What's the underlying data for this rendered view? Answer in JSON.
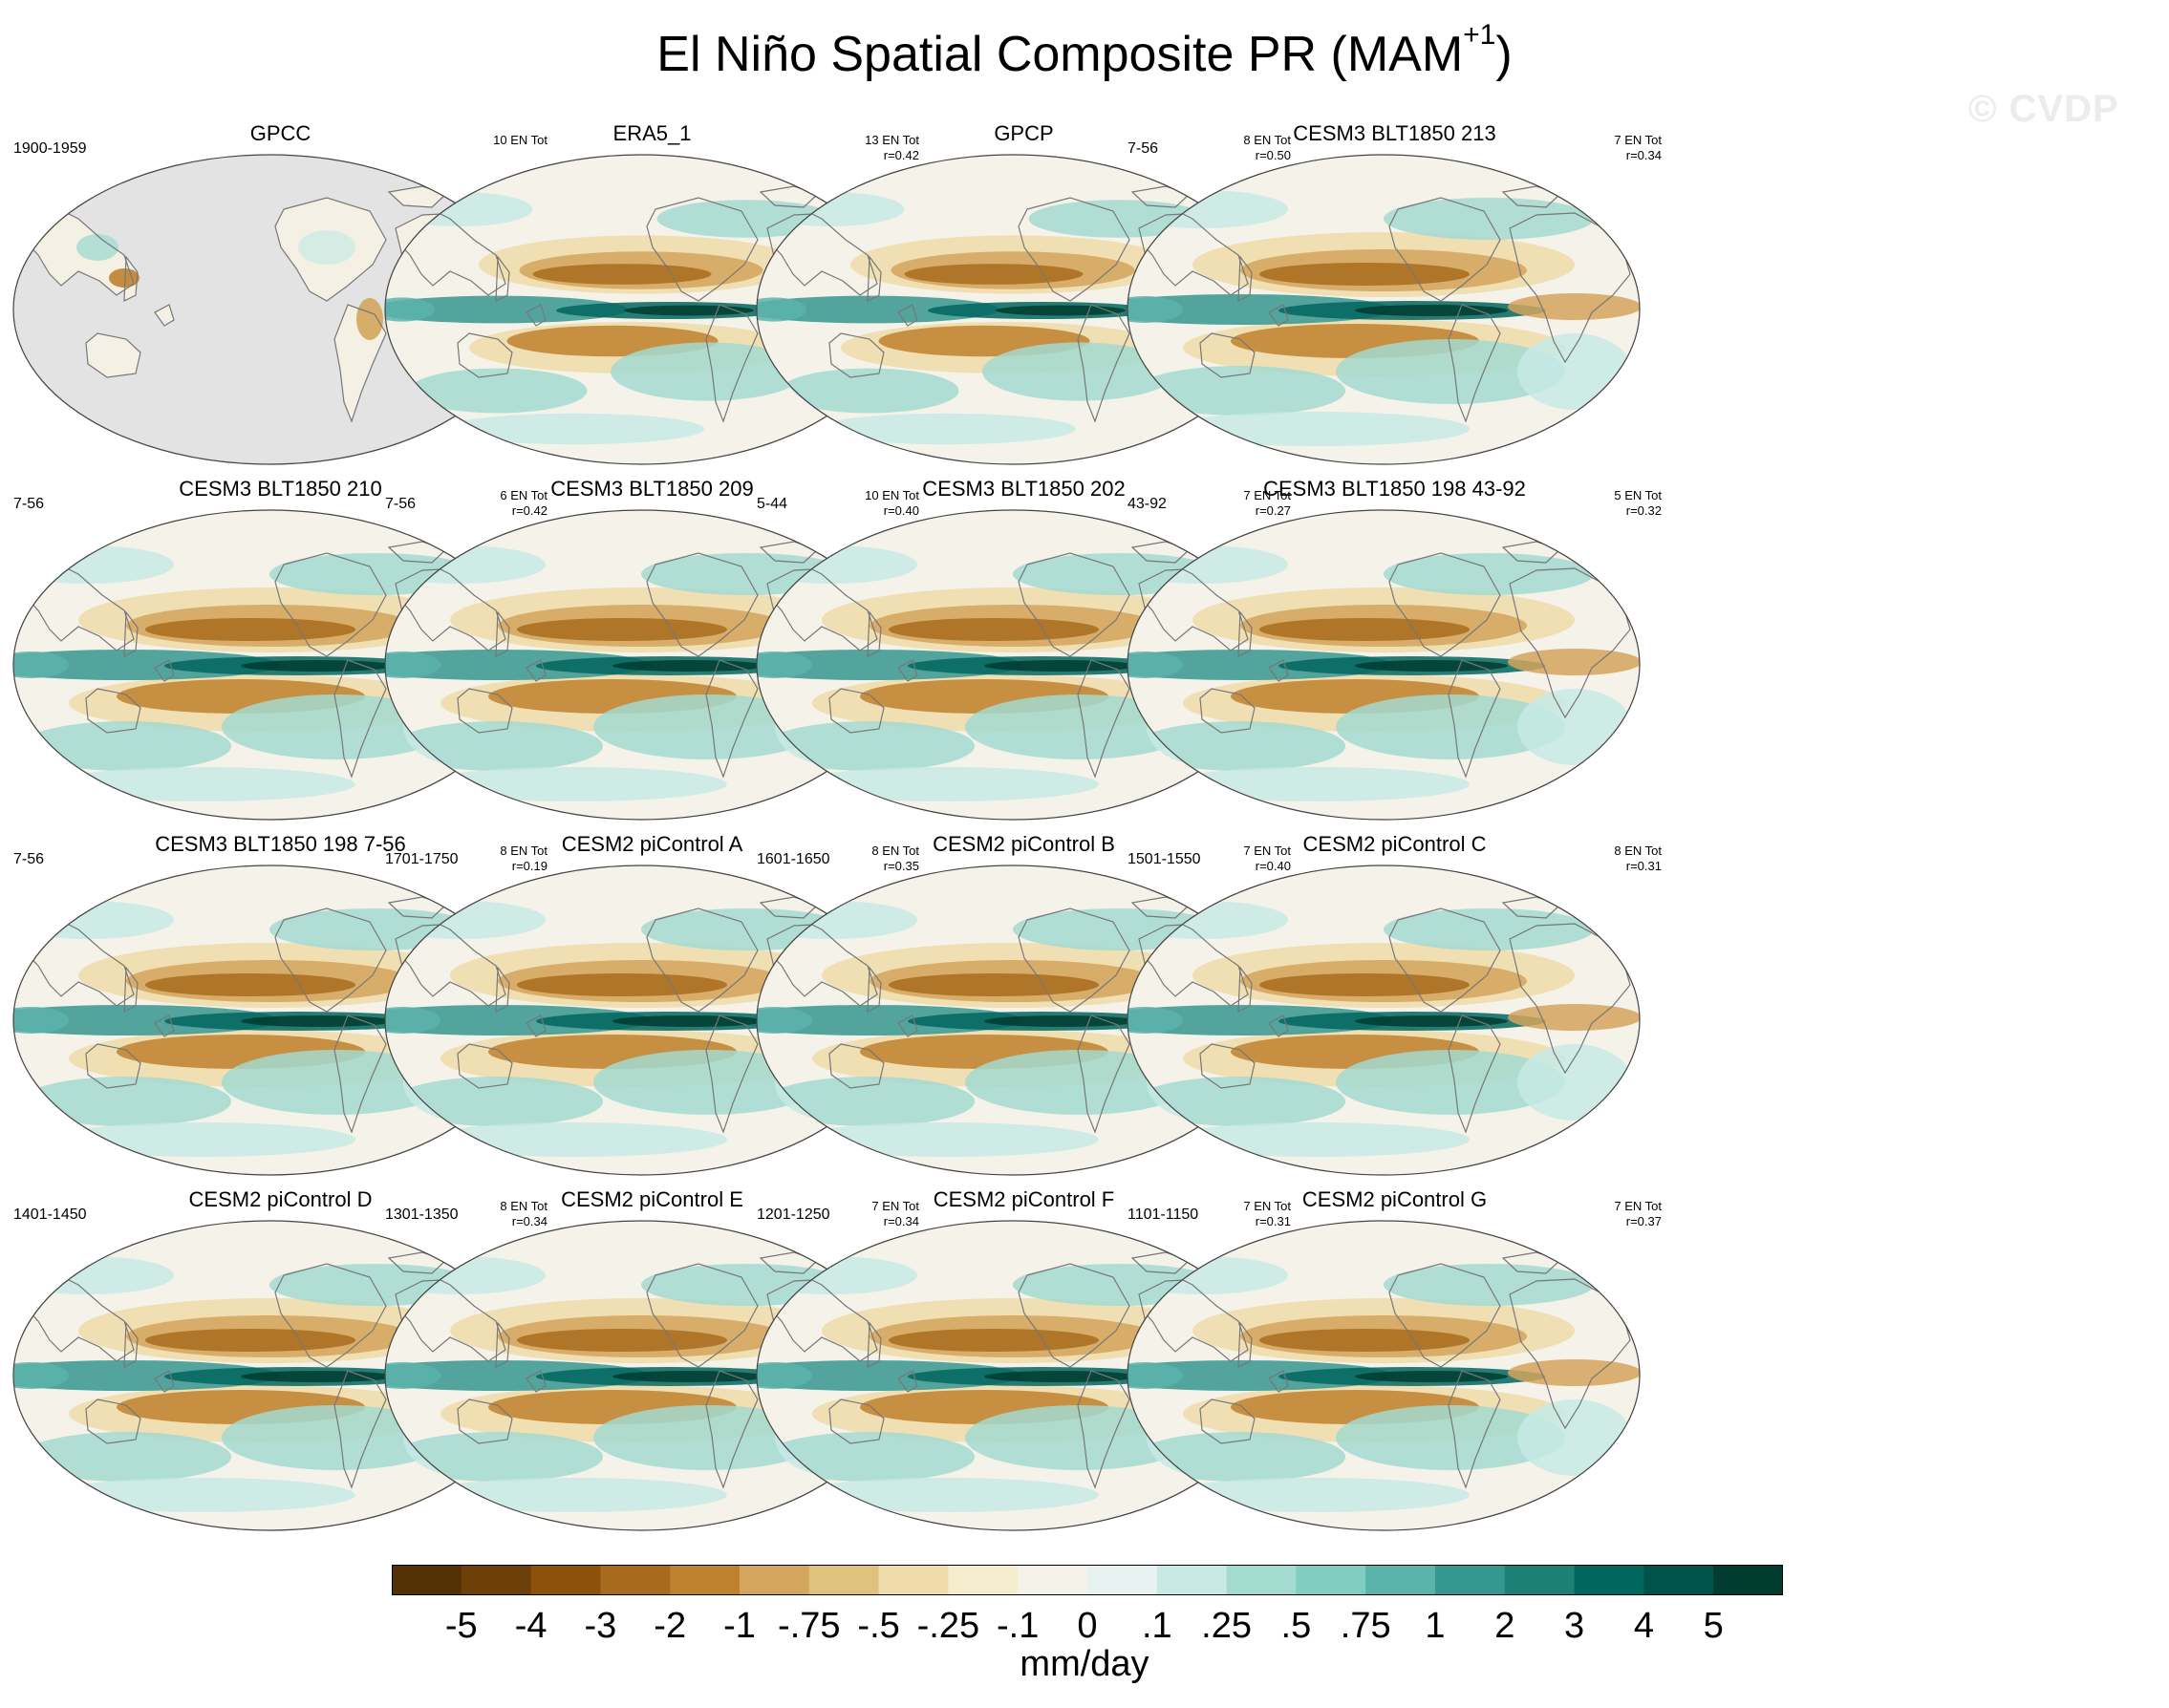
{
  "figure": {
    "title": "El Niño Spatial Composite PR (MAM",
    "title_superscript": "+1",
    "title_close": ")",
    "watermark": "© CVDP",
    "units": "mm/day"
  },
  "colors": {
    "land_mask": "#e3e3e3",
    "coast": "#777777",
    "scale": [
      "#543005",
      "#6e4009",
      "#8c510a",
      "#a86b1e",
      "#bf812d",
      "#d4a55c",
      "#dfc27d",
      "#f0dcaa",
      "#f6ecce",
      "#f5f2ea",
      "#e8f3f1",
      "#c7eae5",
      "#a3dbd1",
      "#80cdc1",
      "#5ab4ac",
      "#35978f",
      "#1d8077",
      "#01665e",
      "#00524a",
      "#003c30"
    ]
  },
  "colorbar": {
    "labels": [
      "-5",
      "-4",
      "-3",
      "-2",
      "-1",
      "-.75",
      "-.5",
      "-.25",
      "-.1",
      "0",
      ".1",
      ".25",
      ".5",
      ".75",
      "1",
      "2",
      "3",
      "4",
      "5"
    ]
  },
  "panels": [
    {
      "title": "GPCC",
      "years": "1900-1959",
      "count": "10 EN Tot",
      "r": "",
      "kind": "land"
    },
    {
      "title": "ERA5_1",
      "years": "",
      "count": "13 EN Tot",
      "r": "r=0.42",
      "kind": "obs"
    },
    {
      "title": "GPCP",
      "years": "",
      "count": "8 EN Tot",
      "r": "r=0.50",
      "kind": "obs"
    },
    {
      "title": "CESM3 BLT1850 213",
      "years": "7-56",
      "count": "7 EN Tot",
      "r": "r=0.34",
      "kind": "model"
    },
    {
      "title": "CESM3 BLT1850 210",
      "years": "7-56",
      "count": "6 EN Tot",
      "r": "r=0.42",
      "kind": "model"
    },
    {
      "title": "CESM3 BLT1850 209",
      "years": "7-56",
      "count": "10 EN Tot",
      "r": "r=0.40",
      "kind": "model"
    },
    {
      "title": "CESM3 BLT1850 202",
      "years": "5-44",
      "count": "7 EN Tot",
      "r": "r=0.27",
      "kind": "model"
    },
    {
      "title": "CESM3 BLT1850 198 43-92",
      "years": "43-92",
      "count": "5 EN Tot",
      "r": "r=0.32",
      "kind": "model"
    },
    {
      "title": "CESM3 BLT1850 198 7-56",
      "years": "7-56",
      "count": "8 EN Tot",
      "r": "r=0.19",
      "kind": "model"
    },
    {
      "title": "CESM2 piControl A",
      "years": "1701-1750",
      "count": "8 EN Tot",
      "r": "r=0.35",
      "kind": "model"
    },
    {
      "title": "CESM2 piControl B",
      "years": "1601-1650",
      "count": "7 EN Tot",
      "r": "r=0.40",
      "kind": "model"
    },
    {
      "title": "CESM2 piControl C",
      "years": "1501-1550",
      "count": "8 EN Tot",
      "r": "r=0.31",
      "kind": "model"
    },
    {
      "title": "CESM2 piControl D",
      "years": "1401-1450",
      "count": "8 EN Tot",
      "r": "r=0.34",
      "kind": "model"
    },
    {
      "title": "CESM2 piControl E",
      "years": "1301-1350",
      "count": "7 EN Tot",
      "r": "r=0.34",
      "kind": "model"
    },
    {
      "title": "CESM2 piControl F",
      "years": "1201-1250",
      "count": "7 EN Tot",
      "r": "r=0.31",
      "kind": "model"
    },
    {
      "title": "CESM2 piControl G",
      "years": "1101-1150",
      "count": "7 EN Tot",
      "r": "r=0.37",
      "kind": "model"
    }
  ]
}
